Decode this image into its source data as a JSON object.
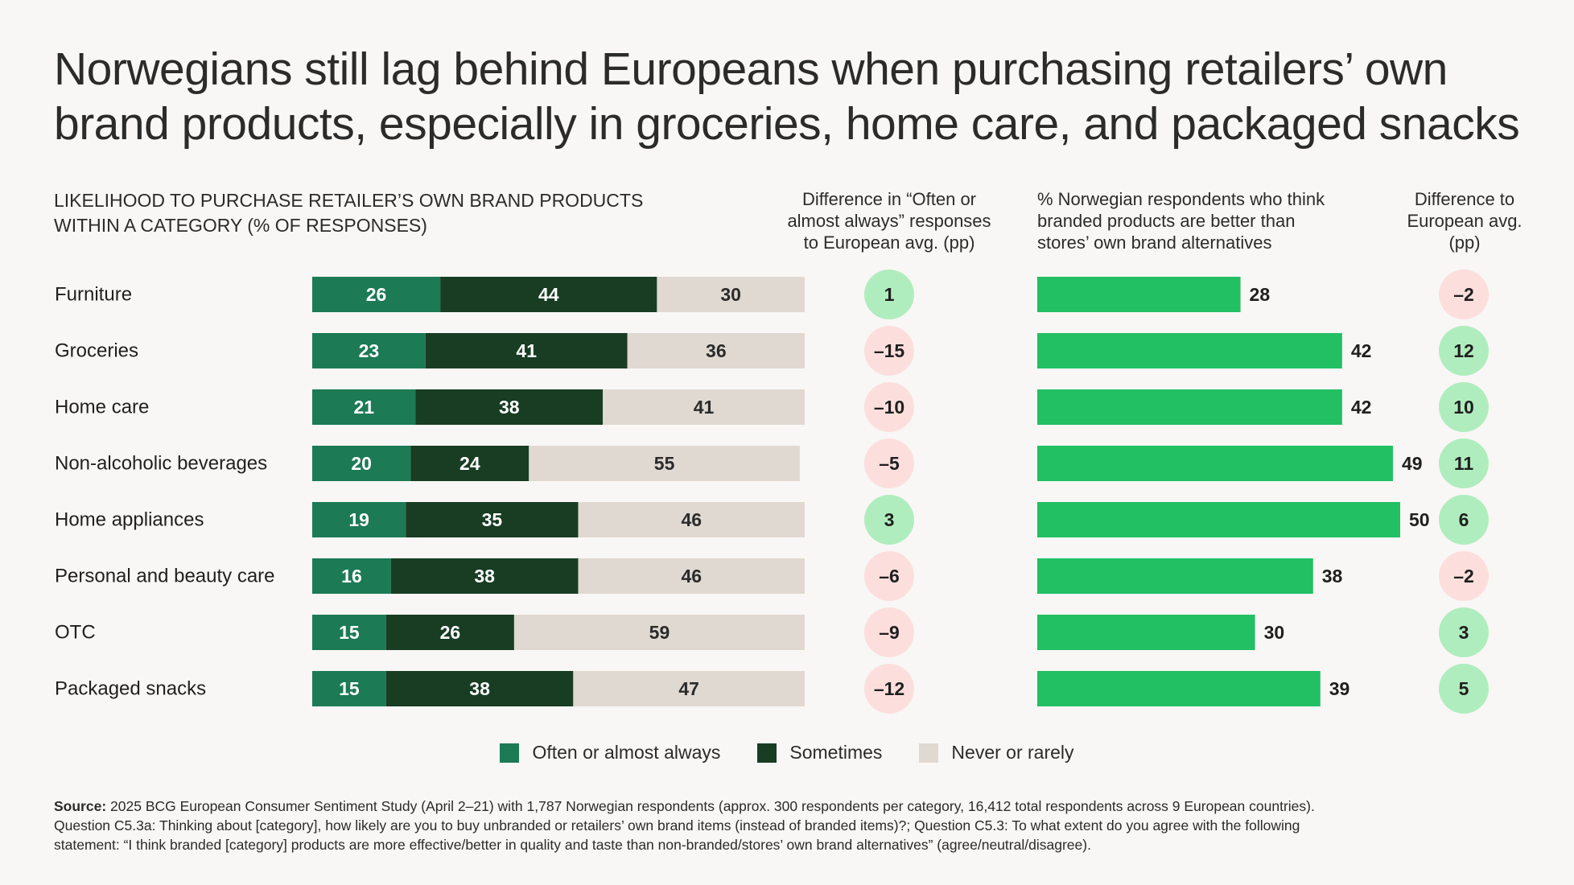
{
  "title": {
    "line1": "Norwegians still lag behind Europeans when purchasing retailers’ own",
    "line2": "brand products, especially in groceries, home care, and packaged snacks"
  },
  "headers": {
    "main_line1": "LIKELIHOOD TO PURCHASE RETAILER’S OWN BRAND PRODUCTS",
    "main_line2": "WITHIN A CATEGORY (% OF RESPONSES)",
    "diff_line1": "Difference in “Often or",
    "diff_line2": "almost always” responses",
    "diff_line3": "to European avg. (pp)",
    "pct_line1": "% Norwegian respondents who think",
    "pct_line2": "branded products are better than",
    "pct_line3": "stores’ own brand alternatives",
    "euro_line1": "Difference to",
    "euro_line2": "European avg.",
    "euro_line3": "(pp)"
  },
  "legend": {
    "often": "Often or almost always",
    "sometimes": "Sometimes",
    "never": "Never or rarely"
  },
  "colors": {
    "often": "#1c7a55",
    "sometimes": "#183d23",
    "never": "#e0d9d1",
    "green_bar": "#22bf63",
    "pos_circle": "#b0edbe",
    "neg_circle": "#fcdfdc"
  },
  "source": {
    "label": "Source:",
    "line1": "2025 BCG European Consumer Sentiment Study (April 2–21) with 1,787 Norwegian respondents (approx. 300 respondents per category, 16,412 total respondents across 9 European countries).",
    "line2": "Question C5.3a: Thinking about [category], how likely are you to buy unbranded or retailers’ own brand items (instead of branded items)?; Question C5.3: To what extent do you agree with the following",
    "line3": "statement: “I think branded [category] products are more effective/better in quality and taste than non-branded/stores’ own brand alternatives” (agree/neutral/disagree)."
  },
  "chart_data": {
    "type": "bar",
    "categories": [
      "Furniture",
      "Groceries",
      "Home care",
      "Non-alcoholic beverages",
      "Home appliances",
      "Personal and beauty care",
      "OTC",
      "Packaged snacks"
    ],
    "series": [
      {
        "name": "Often or almost always",
        "values": [
          26,
          23,
          21,
          20,
          19,
          16,
          15,
          15
        ]
      },
      {
        "name": "Sometimes",
        "values": [
          44,
          41,
          38,
          24,
          35,
          38,
          26,
          38
        ]
      },
      {
        "name": "Never or rarely",
        "values": [
          30,
          36,
          41,
          55,
          46,
          46,
          59,
          47
        ]
      }
    ],
    "diff_often_labels": [
      "1",
      "–15",
      "–10",
      "–5",
      "3",
      "–6",
      "–9",
      "–12"
    ],
    "diff_often_values": [
      1,
      -15,
      -10,
      -5,
      3,
      -6,
      -9,
      -12
    ],
    "branded_better_pct": [
      28,
      42,
      42,
      49,
      50,
      38,
      30,
      39
    ],
    "diff_euro_labels": [
      "–2",
      "12",
      "10",
      "11",
      "6",
      "–2",
      "3",
      "5"
    ],
    "diff_euro_values": [
      -2,
      12,
      10,
      11,
      6,
      -2,
      3,
      5
    ],
    "xlim": [
      0,
      100
    ],
    "branded_xlim": [
      0,
      50
    ]
  }
}
